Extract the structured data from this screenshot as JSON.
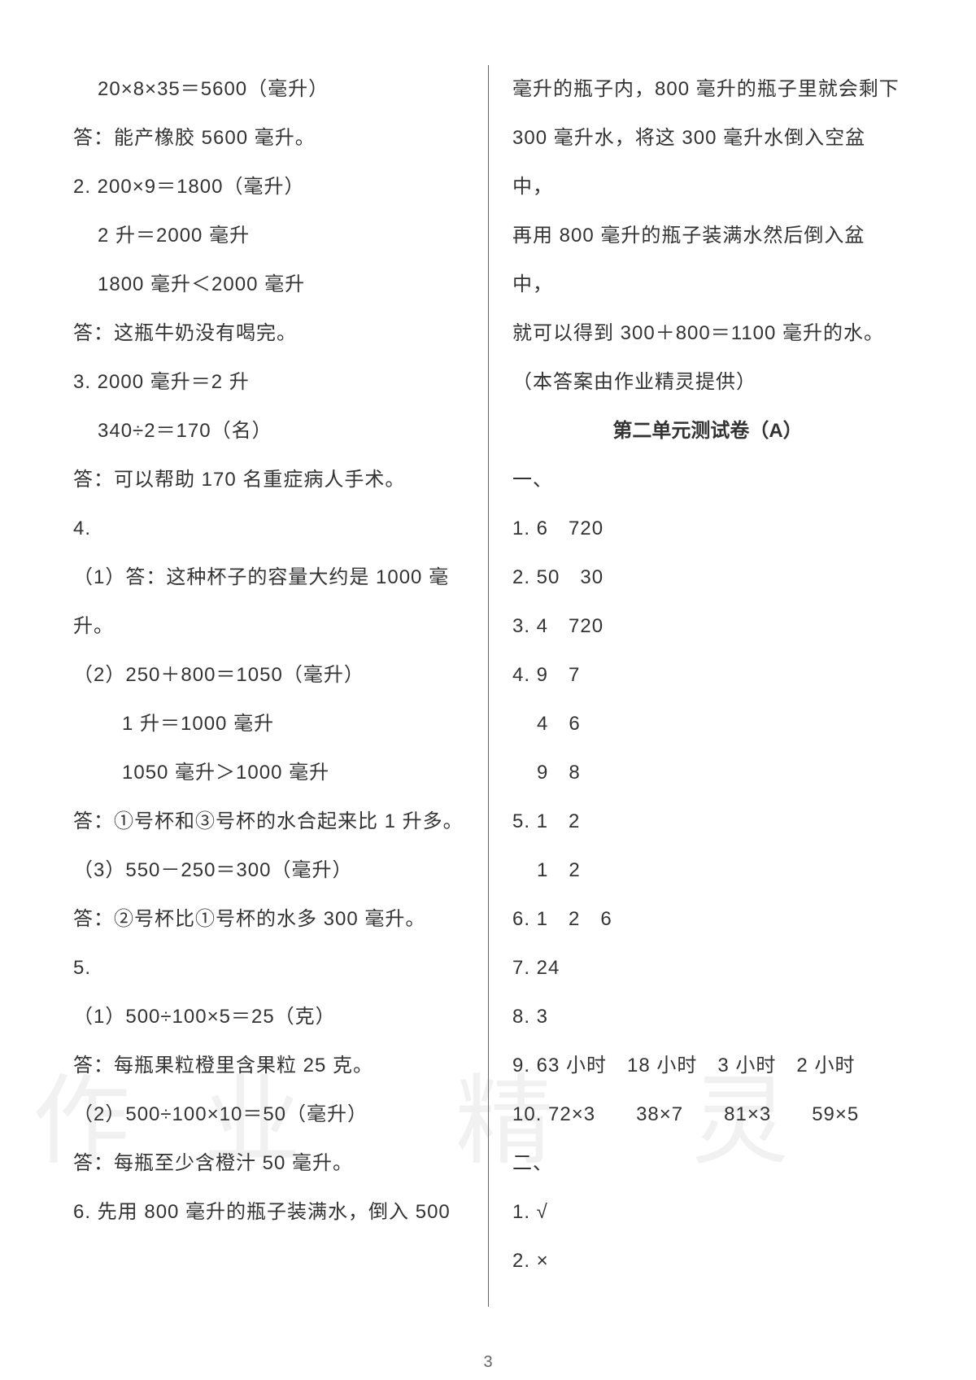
{
  "page": {
    "number": "3",
    "background_color": "#ffffff",
    "text_color": "#333333",
    "font_size": 24,
    "line_height": 2.5
  },
  "watermark": {
    "char1": "作",
    "char2": "业",
    "char3": "精",
    "char4": "灵",
    "color": "rgba(200, 200, 200, 0.25)",
    "font_size": 120
  },
  "left_column": {
    "lines": [
      {
        "text": "20×8×35＝5600（毫升）",
        "indent": 1
      },
      {
        "text": "答：能产橡胶 5600 毫升。",
        "indent": 0
      },
      {
        "text": "2. 200×9＝1800（毫升）",
        "indent": 0
      },
      {
        "text": "2 升＝2000 毫升",
        "indent": 1
      },
      {
        "text": "1800 毫升＜2000 毫升",
        "indent": 1
      },
      {
        "text": "答：这瓶牛奶没有喝完。",
        "indent": 0
      },
      {
        "text": "3. 2000 毫升＝2 升",
        "indent": 0
      },
      {
        "text": "340÷2＝170（名）",
        "indent": 1
      },
      {
        "text": "答：可以帮助 170 名重症病人手术。",
        "indent": 0
      },
      {
        "text": "4.",
        "indent": 0
      },
      {
        "text": "（1）答：这种杯子的容量大约是 1000 毫升。",
        "indent": 0
      },
      {
        "text": "（2）250＋800＝1050（毫升）",
        "indent": 0
      },
      {
        "text": "1 升＝1000 毫升",
        "indent": 2
      },
      {
        "text": "1050 毫升＞1000 毫升",
        "indent": 2
      },
      {
        "text": "答：①号杯和③号杯的水合起来比 1 升多。",
        "indent": 0
      },
      {
        "text": "（3）550－250＝300（毫升）",
        "indent": 0
      },
      {
        "text": "答：②号杯比①号杯的水多 300 毫升。",
        "indent": 0
      },
      {
        "text": "5.",
        "indent": 0
      },
      {
        "text": "（1）500÷100×5＝25（克）",
        "indent": 0
      },
      {
        "text": "答：每瓶果粒橙里含果粒 25 克。",
        "indent": 0
      },
      {
        "text": "（2）500÷100×10＝50（毫升）",
        "indent": 0
      },
      {
        "text": "答：每瓶至少含橙汁 50 毫升。",
        "indent": 0
      },
      {
        "text": "6. 先用 800 毫升的瓶子装满水，倒入 500",
        "indent": 0
      }
    ]
  },
  "right_column": {
    "lines": [
      {
        "text": "毫升的瓶子内，800 毫升的瓶子里就会剩下",
        "indent": 0
      },
      {
        "text": "300 毫升水，将这 300 毫升水倒入空盆中，",
        "indent": 0
      },
      {
        "text": "再用 800 毫升的瓶子装满水然后倒入盆中，",
        "indent": 0
      },
      {
        "text": "就可以得到 300＋800＝1100 毫升的水。",
        "indent": 0
      },
      {
        "text": "（本答案由作业精灵提供）",
        "indent": 0
      }
    ],
    "section_title": "第二单元测试卷（A）",
    "section_lines": [
      {
        "text": "一、",
        "indent": 0
      },
      {
        "text": "1. 6　720",
        "indent": 0
      },
      {
        "text": "2. 50　30",
        "indent": 0
      },
      {
        "text": "3. 4　720",
        "indent": 0
      },
      {
        "text": "4. 9　7",
        "indent": 0
      },
      {
        "text": "4　6",
        "indent": 1
      },
      {
        "text": "9　8",
        "indent": 1
      },
      {
        "text": "5. 1　2",
        "indent": 0
      },
      {
        "text": "1　2",
        "indent": 1
      },
      {
        "text": "6. 1　2　6",
        "indent": 0
      },
      {
        "text": "7. 24",
        "indent": 0
      },
      {
        "text": "8. 3",
        "indent": 0
      },
      {
        "text": "9. 63 小时　18 小时　3 小时　2 小时",
        "indent": 0
      },
      {
        "text": "10. 72×3　　38×7　　81×3　　59×5",
        "indent": 0
      },
      {
        "text": "二、",
        "indent": 0
      },
      {
        "text": "1. √",
        "indent": 0
      },
      {
        "text": "2. ×",
        "indent": 0
      }
    ]
  }
}
